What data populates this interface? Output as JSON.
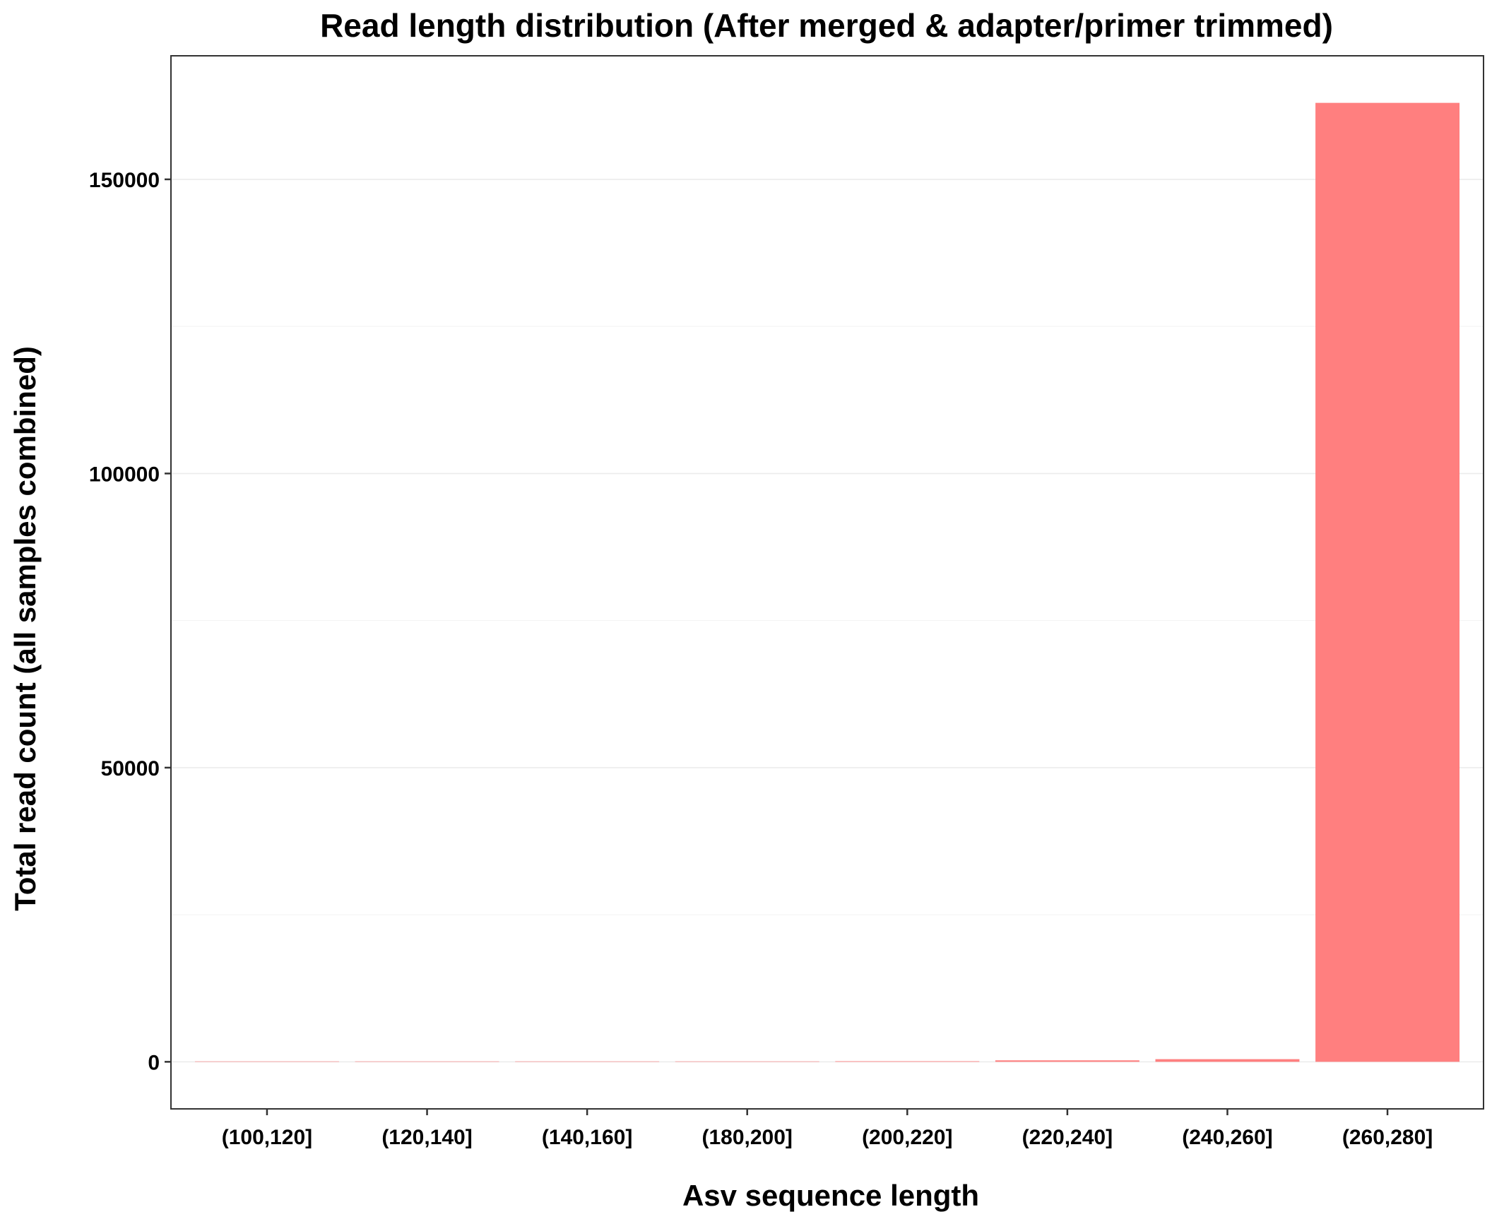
{
  "chart_data": {
    "type": "bar",
    "title": "Read length distribution (After merged & adapter/primer trimmed)",
    "xlabel": "Asv sequence length",
    "ylabel": "Total read count (all samples combined)",
    "categories": [
      "(100,120]",
      "(120,140]",
      "(140,160]",
      "(180,200]",
      "(200,220]",
      "(220,240]",
      "(240,260]",
      "(260,280]"
    ],
    "values": [
      5,
      5,
      10,
      15,
      100,
      250,
      450,
      163000
    ],
    "ylim": [
      -8000,
      171000
    ],
    "yticks": [
      0,
      50000,
      100000,
      150000
    ],
    "ytick_labels": [
      "0",
      "50000",
      "100000",
      "150000"
    ],
    "bar_color": "#ff7f7f",
    "grid": "y-only",
    "legend": "none"
  }
}
